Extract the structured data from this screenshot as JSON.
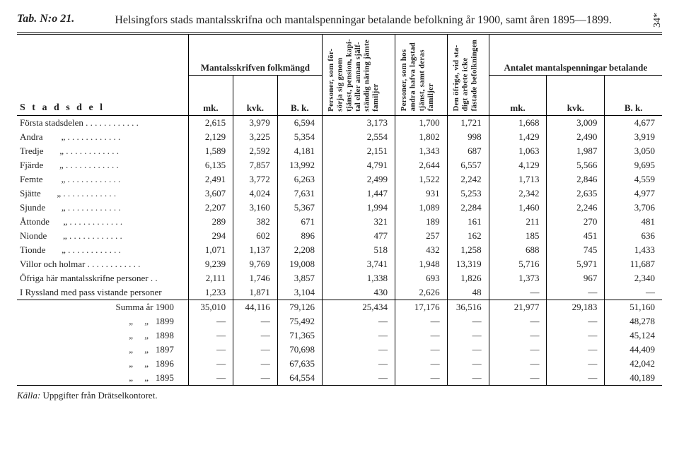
{
  "header": {
    "tab_label": "Tab. N:o 21.",
    "title": "Helsingfors stads mantalsskrifna och mantalspenningar betalande befolkning år 1900, samt åren 1895—1899.",
    "page_side": "34*"
  },
  "columns": {
    "stadsdel": "S t a d s d e l",
    "mantalsskrifven": "Mantalsskrifven folkmängd",
    "mk": "mk.",
    "kvk": "kvk.",
    "bk": "B. k.",
    "col4": "Personer, som för-\nsörja sig genom\ntjänst, pension, kapi-\ntal eller annan själf-\nständig näring jämte\nfamiljer",
    "col5": "Personer, som hos\nandra hafva lagstad\ntjänst, samt deras\nfamiljer",
    "col6": "Den öfriga, vid sta-\ndigt arbete icke\nfästade befolkningen",
    "antalet": "Antalet mantalspenningar betalande"
  },
  "rows": [
    {
      "name": "Första stadsdelen",
      "v": [
        "2,615",
        "3,979",
        "6,594",
        "3,173",
        "1,700",
        "1,721",
        "1,668",
        "3,009",
        "4,677"
      ]
    },
    {
      "name": "Andra        „",
      "v": [
        "2,129",
        "3,225",
        "5,354",
        "2,554",
        "1,802",
        "998",
        "1,429",
        "2,490",
        "3,919"
      ]
    },
    {
      "name": "Tredje       „",
      "v": [
        "1,589",
        "2,592",
        "4,181",
        "2,151",
        "1,343",
        "687",
        "1,063",
        "1,987",
        "3,050"
      ]
    },
    {
      "name": "Fjärde       „",
      "v": [
        "6,135",
        "7,857",
        "13,992",
        "4,791",
        "2,644",
        "6,557",
        "4,129",
        "5,566",
        "9,695"
      ]
    },
    {
      "name": "Femte        „",
      "v": [
        "2,491",
        "3,772",
        "6,263",
        "2,499",
        "1,522",
        "2,242",
        "1,713",
        "2,846",
        "4,559"
      ]
    },
    {
      "name": "Sjätte       „",
      "v": [
        "3,607",
        "4,024",
        "7,631",
        "1,447",
        "931",
        "5,253",
        "2,342",
        "2,635",
        "4,977"
      ]
    },
    {
      "name": "Sjunde       „",
      "v": [
        "2,207",
        "3,160",
        "5,367",
        "1,994",
        "1,089",
        "2,284",
        "1,460",
        "2,246",
        "3,706"
      ]
    },
    {
      "name": "Åttonde      „",
      "v": [
        "289",
        "382",
        "671",
        "321",
        "189",
        "161",
        "211",
        "270",
        "481"
      ]
    },
    {
      "name": "Nionde       „",
      "v": [
        "294",
        "602",
        "896",
        "477",
        "257",
        "162",
        "185",
        "451",
        "636"
      ]
    },
    {
      "name": "Tionde       „",
      "v": [
        "1,071",
        "1,137",
        "2,208",
        "518",
        "432",
        "1,258",
        "688",
        "745",
        "1,433"
      ]
    },
    {
      "name": "Villor och holmar",
      "v": [
        "9,239",
        "9,769",
        "19,008",
        "3,741",
        "1,948",
        "13,319",
        "5,716",
        "5,971",
        "11,687"
      ]
    },
    {
      "name": "Öfriga här mantalsskrifne personer . .",
      "nodots": true,
      "v": [
        "2,111",
        "1,746",
        "3,857",
        "1,338",
        "693",
        "1,826",
        "1,373",
        "967",
        "2,340"
      ]
    },
    {
      "name": "I Ryssland med pass vistande personer",
      "nodots": true,
      "v": [
        "1,233",
        "1,871",
        "3,104",
        "430",
        "2,626",
        "48",
        "—",
        "—",
        "—"
      ]
    }
  ],
  "summary": [
    {
      "name": "Summa år 1900",
      "v": [
        "35,010",
        "44,116",
        "79,126",
        "25,434",
        "17,176",
        "36,516",
        "21,977",
        "29,183",
        "51,160"
      ]
    },
    {
      "name": "„     „   1899",
      "v": [
        "—",
        "—",
        "75,492",
        "—",
        "—",
        "—",
        "—",
        "—",
        "48,278"
      ]
    },
    {
      "name": "„     „   1898",
      "v": [
        "—",
        "—",
        "71,365",
        "—",
        "—",
        "—",
        "—",
        "—",
        "45,124"
      ]
    },
    {
      "name": "„     „   1897",
      "v": [
        "—",
        "—",
        "70,698",
        "—",
        "—",
        "—",
        "—",
        "—",
        "44,409"
      ]
    },
    {
      "name": "„     „   1896",
      "v": [
        "—",
        "—",
        "67,635",
        "—",
        "—",
        "—",
        "—",
        "—",
        "42,042"
      ]
    },
    {
      "name": "„     „   1895",
      "v": [
        "—",
        "—",
        "64,554",
        "—",
        "—",
        "—",
        "—",
        "—",
        "40,189"
      ]
    }
  ],
  "source": {
    "label": "Källa:",
    "text": "Uppgifter från Drätselkontoret."
  }
}
